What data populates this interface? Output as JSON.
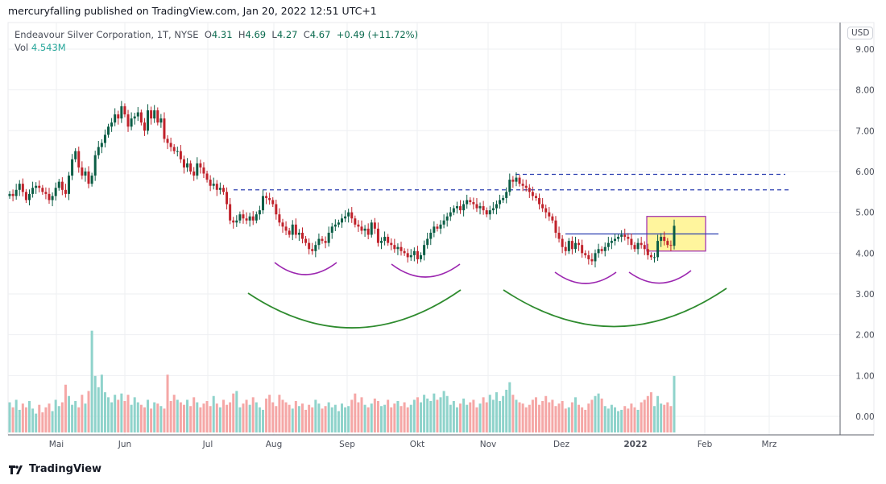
{
  "publish_line": "mercuryfalling published on TradingView.com, Jan 20, 2022 12:51 UTC+1",
  "legend": {
    "symbol": "Endeavour Silver Corporation, 1T, NYSE",
    "open_label": "O",
    "open": "4.31",
    "high_label": "H",
    "high": "4.69",
    "low_label": "L",
    "low": "4.27",
    "close_label": "C",
    "close": "4.67",
    "change": "+0.49 (+11.72%)",
    "vol_label": "Vol",
    "vol": "4.543M"
  },
  "currency": "USD",
  "footer": {
    "brand": "TradingView"
  },
  "colors": {
    "up": "#0b5d45",
    "down": "#c0222b",
    "vol_up": "#8fd3cb",
    "vol_down": "#f5a7a6",
    "level": "#2b3fb0",
    "arc_small": "#9c27b0",
    "arc_big": "#2e8b2e",
    "box_fill": "#fff59d",
    "box_border": "#9c27b0"
  },
  "chart_data": {
    "type": "candlestick",
    "title": "Endeavour Silver Corporation, 1T, NYSE",
    "ylim": [
      0,
      9.6
    ],
    "y_ticks": [
      "9.00",
      "8.00",
      "7.00",
      "6.00",
      "5.00",
      "4.00",
      "3.00",
      "2.00",
      "1.00",
      "0.00"
    ],
    "x_ticks": [
      "Mai",
      "Jun",
      "Jul",
      "Aug",
      "Sep",
      "Okt",
      "Nov",
      "Dez",
      "2022",
      "Feb",
      "Mrz"
    ],
    "first_open": 5.4,
    "closes": [
      5.45,
      5.4,
      5.55,
      5.7,
      5.5,
      5.3,
      5.45,
      5.6,
      5.65,
      5.6,
      5.5,
      5.45,
      5.3,
      5.4,
      5.6,
      5.75,
      5.55,
      5.45,
      5.9,
      6.3,
      6.5,
      6.1,
      5.9,
      6.0,
      5.7,
      5.9,
      6.4,
      6.6,
      6.7,
      6.9,
      7.1,
      7.2,
      7.4,
      7.3,
      7.6,
      7.4,
      7.1,
      7.3,
      7.35,
      7.45,
      7.2,
      7.0,
      7.5,
      7.3,
      7.5,
      7.2,
      7.3,
      6.8,
      6.7,
      6.6,
      6.5,
      6.5,
      6.3,
      6.1,
      6.2,
      6.0,
      5.9,
      6.2,
      6.1,
      5.95,
      5.8,
      5.65,
      5.7,
      5.55,
      5.6,
      5.5,
      5.2,
      4.8,
      4.75,
      4.8,
      4.95,
      4.85,
      4.8,
      4.9,
      4.8,
      4.95,
      5.05,
      5.4,
      5.35,
      5.3,
      5.2,
      4.95,
      4.75,
      4.65,
      4.55,
      4.45,
      4.7,
      4.45,
      4.5,
      4.35,
      4.25,
      4.1,
      4.05,
      4.2,
      4.35,
      4.3,
      4.25,
      4.5,
      4.65,
      4.7,
      4.75,
      4.85,
      4.9,
      5.0,
      4.85,
      4.7,
      4.65,
      4.55,
      4.6,
      4.45,
      4.75,
      4.6,
      4.25,
      4.3,
      4.4,
      4.25,
      4.2,
      4.1,
      4.15,
      4.05,
      4.0,
      3.9,
      3.95,
      4.05,
      3.85,
      3.95,
      4.2,
      4.35,
      4.5,
      4.65,
      4.6,
      4.7,
      4.8,
      4.9,
      5.0,
      5.1,
      5.15,
      5.05,
      5.2,
      5.3,
      5.25,
      5.2,
      5.1,
      5.15,
      5.05,
      4.95,
      5.05,
      5.1,
      5.2,
      5.3,
      5.35,
      5.5,
      5.8,
      5.75,
      5.85,
      5.7,
      5.65,
      5.6,
      5.5,
      5.4,
      5.35,
      5.2,
      5.1,
      5.0,
      4.9,
      4.8,
      4.5,
      4.35,
      4.15,
      4.05,
      4.3,
      4.1,
      4.25,
      4.2,
      4.0,
      3.95,
      3.85,
      3.8,
      4.0,
      4.1,
      4.05,
      4.15,
      4.25,
      4.3,
      4.35,
      4.4,
      4.45,
      4.4,
      4.35,
      4.2,
      4.1,
      4.25,
      4.2,
      4.1,
      3.95,
      3.9,
      3.9,
      4.3,
      4.4,
      4.3,
      4.2,
      4.18,
      4.67
    ],
    "volumes_millions": [
      2.4,
      2.0,
      2.6,
      1.8,
      2.3,
      2.0,
      2.5,
      1.9,
      1.5,
      2.2,
      1.6,
      2.0,
      2.3,
      1.7,
      2.6,
      2.1,
      2.4,
      3.8,
      2.9,
      2.2,
      2.5,
      2.0,
      3.0,
      2.3,
      3.3,
      8.1,
      4.5,
      3.6,
      4.6,
      3.2,
      2.8,
      2.4,
      3.0,
      2.6,
      3.1,
      2.5,
      3.0,
      2.2,
      2.8,
      2.4,
      2.2,
      2.0,
      2.6,
      1.9,
      2.4,
      2.3,
      2.1,
      1.9,
      4.6,
      2.5,
      3.0,
      2.6,
      2.4,
      2.2,
      2.6,
      2.1,
      2.8,
      2.4,
      2.0,
      2.3,
      2.5,
      2.1,
      2.9,
      2.3,
      2.0,
      2.6,
      2.2,
      2.4,
      3.1,
      3.3,
      2.0,
      2.3,
      2.6,
      2.2,
      2.8,
      2.4,
      2.0,
      1.8,
      2.7,
      3.0,
      2.4,
      2.1,
      3.0,
      2.6,
      2.4,
      2.2,
      1.9,
      2.5,
      2.1,
      2.3,
      1.8,
      2.2,
      2.0,
      2.6,
      2.3,
      1.9,
      2.1,
      2.4,
      2.0,
      2.2,
      1.7,
      2.3,
      2.0,
      2.1,
      2.6,
      3.1,
      2.4,
      2.8,
      2.2,
      2.0,
      2.3,
      2.7,
      2.5,
      2.1,
      2.2,
      2.6,
      2.0,
      2.3,
      2.5,
      2.1,
      2.4,
      2.0,
      2.2,
      2.6,
      2.8,
      2.4,
      3.0,
      2.7,
      2.5,
      3.1,
      2.6,
      2.8,
      3.3,
      2.9,
      2.2,
      2.5,
      2.0,
      2.3,
      2.7,
      2.2,
      2.4,
      2.6,
      2.0,
      2.3,
      2.8,
      2.4,
      3.0,
      2.6,
      3.2,
      2.5,
      2.9,
      3.4,
      4.0,
      3.0,
      2.6,
      2.4,
      2.3,
      2.0,
      2.2,
      2.6,
      2.8,
      2.2,
      2.5,
      2.9,
      2.4,
      2.6,
      2.1,
      2.3,
      2.5,
      1.9,
      2.0,
      2.4,
      2.8,
      2.2,
      2.0,
      1.8,
      2.3,
      2.6,
      2.9,
      3.1,
      2.7,
      2.1,
      1.9,
      2.2,
      2.0,
      1.7,
      1.8,
      2.1,
      1.9,
      2.3,
      2.0,
      1.8,
      2.4,
      2.6,
      2.9,
      3.2,
      2.1,
      2.9,
      2.3,
      2.2,
      2.4,
      2.1,
      4.5
    ],
    "annotations": {
      "resistance_levels": [
        5.55,
        5.93
      ],
      "neckline": 4.47,
      "highlight_box_range": [
        4.05,
        4.9
      ]
    },
    "grid": true
  }
}
